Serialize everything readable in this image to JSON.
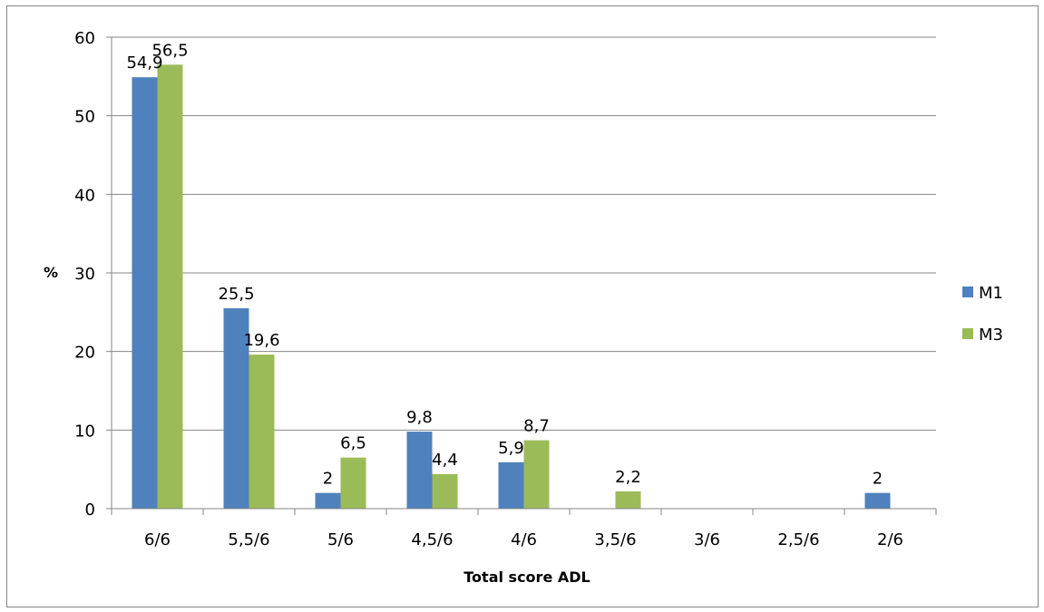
{
  "chart_data": {
    "type": "bar",
    "title": "",
    "xlabel": "Total score ADL",
    "ylabel": "%",
    "ylim": [
      0,
      60
    ],
    "yticks": [
      0,
      10,
      20,
      30,
      40,
      50,
      60
    ],
    "grid": true,
    "legend_position": "right",
    "categories": [
      "6/6",
      "5,5/6",
      "5/6",
      "4,5/6",
      "4/6",
      "3,5/6",
      "3/6",
      "2,5/6",
      "2/6"
    ],
    "series": [
      {
        "name": "M1",
        "color": "#4f81bd",
        "values": [
          54.9,
          25.5,
          2,
          9.8,
          5.9,
          null,
          null,
          null,
          2
        ],
        "labels": [
          "54,9",
          "25,5",
          "2",
          "9,8",
          "5,9",
          "",
          "",
          "",
          "2"
        ]
      },
      {
        "name": "M3",
        "color": "#9bbb59",
        "values": [
          56.5,
          19.6,
          6.5,
          4.4,
          8.7,
          2.2,
          null,
          null,
          null
        ],
        "labels": [
          "56,5",
          "19,6",
          "6,5",
          "4,4",
          "8,7",
          "2,2",
          "",
          "",
          ""
        ]
      }
    ]
  }
}
